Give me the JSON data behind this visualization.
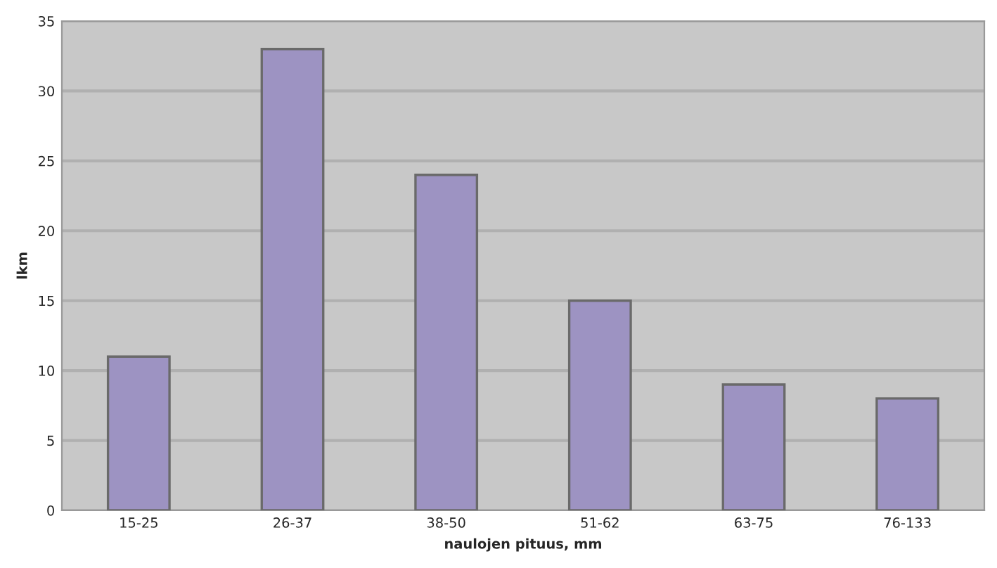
{
  "chart_data": {
    "type": "bar",
    "xlabel": "naulojen pituus, mm",
    "ylabel": "lkm",
    "categories": [
      "15-25",
      "26-37",
      "38-50",
      "51-62",
      "63-75",
      "76-133"
    ],
    "values": [
      11,
      33,
      24,
      15,
      9,
      8
    ],
    "color": "#9d93c2",
    "ylim": [
      0,
      35
    ],
    "yticks": [
      0,
      5,
      10,
      15,
      20,
      25,
      30,
      35
    ],
    "grid": "y"
  }
}
